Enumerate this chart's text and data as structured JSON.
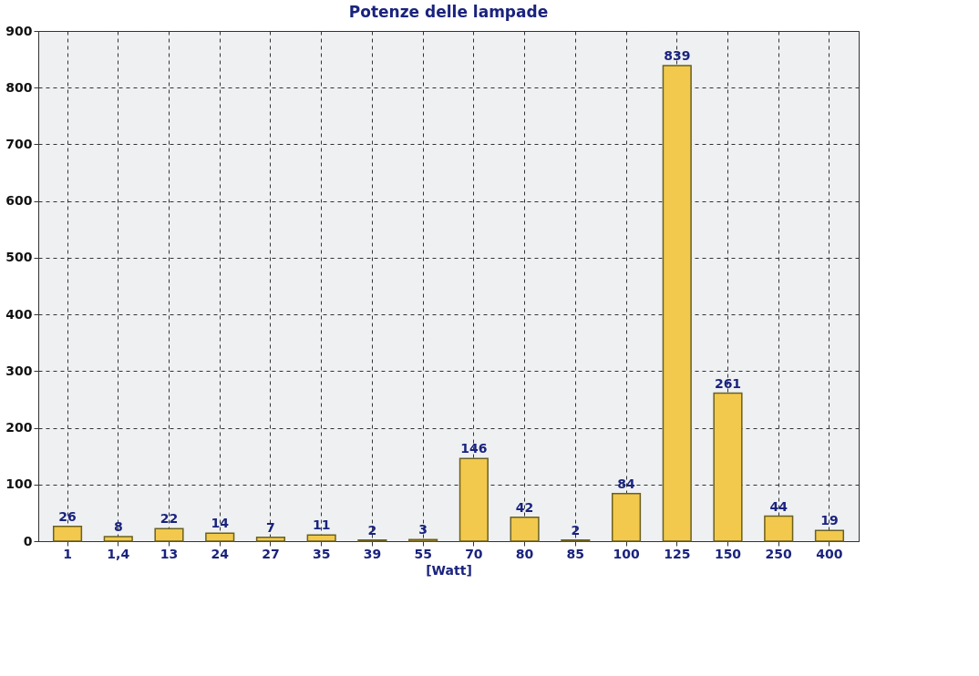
{
  "chart_data": {
    "type": "bar",
    "title": "Potenze delle lampade",
    "xlabel": "[Watt]",
    "categories": [
      "1",
      "1,4",
      "13",
      "24",
      "27",
      "35",
      "39",
      "55",
      "70",
      "80",
      "85",
      "100",
      "125",
      "150",
      "250",
      "400"
    ],
    "values": [
      26,
      8,
      22,
      14,
      7,
      11,
      2,
      3,
      146,
      42,
      2,
      84,
      839,
      261,
      44,
      19
    ],
    "color": "#f2c94c",
    "ylim": [
      0,
      900
    ],
    "yticks": [
      0,
      100,
      200,
      300,
      400,
      500,
      600,
      700,
      800,
      900
    ],
    "grid": true,
    "data_labels": true
  }
}
